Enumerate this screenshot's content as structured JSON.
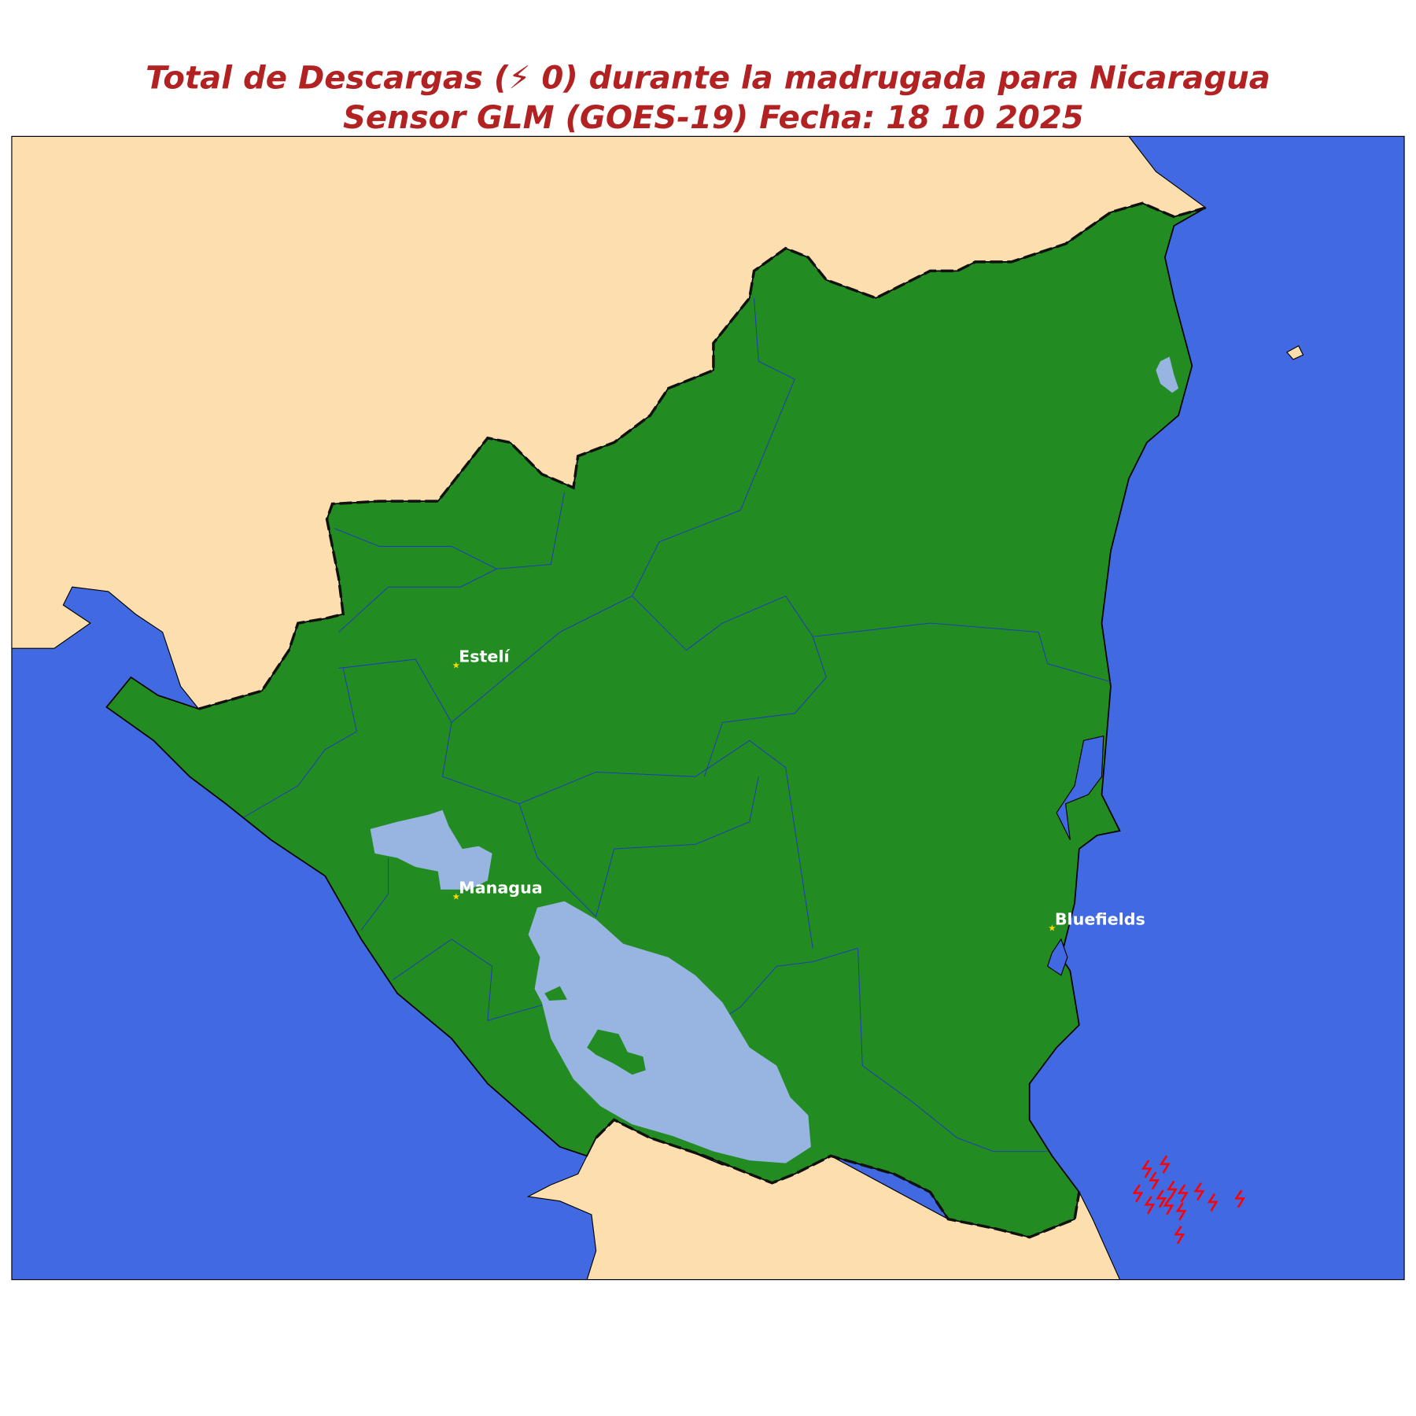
{
  "title": {
    "line1": "Total de Descargas (⚡ 0) durante la madrugada para Nicaragua",
    "line2": "Sensor GLM (GOES-19) Fecha: 18 10 2025"
  },
  "cities": [
    {
      "name": "Estelí"
    },
    {
      "name": "Managua"
    },
    {
      "name": "Bluefields"
    }
  ]
}
